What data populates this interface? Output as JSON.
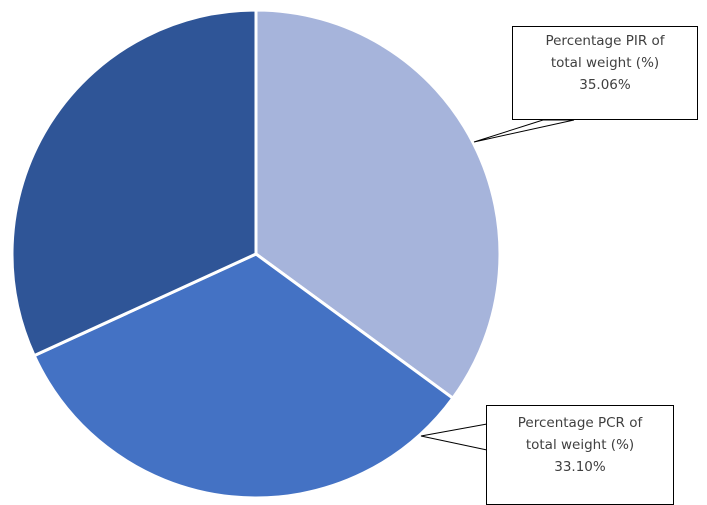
{
  "chart_data": {
    "type": "pie",
    "slices": [
      {
        "name": "Percentage PIR of total weight (%)",
        "value": 35.06,
        "label_line1": "Percentage PIR of",
        "label_line2": "total weight (%)",
        "value_label": "35.06%",
        "color": "#A6B4DB"
      },
      {
        "name": "Percentage PCR of total weight (%)",
        "value": 33.1,
        "label_line1": "Percentage PCR of",
        "label_line2": "total weight (%)",
        "value_label": "33.10%",
        "color": "#4472C4"
      },
      {
        "name": "",
        "value": 31.84,
        "color": "#2F5597"
      }
    ],
    "start_angle_deg": 0,
    "direction": "clockwise",
    "slice_border_color": "#FFFFFF",
    "legend": "none"
  }
}
